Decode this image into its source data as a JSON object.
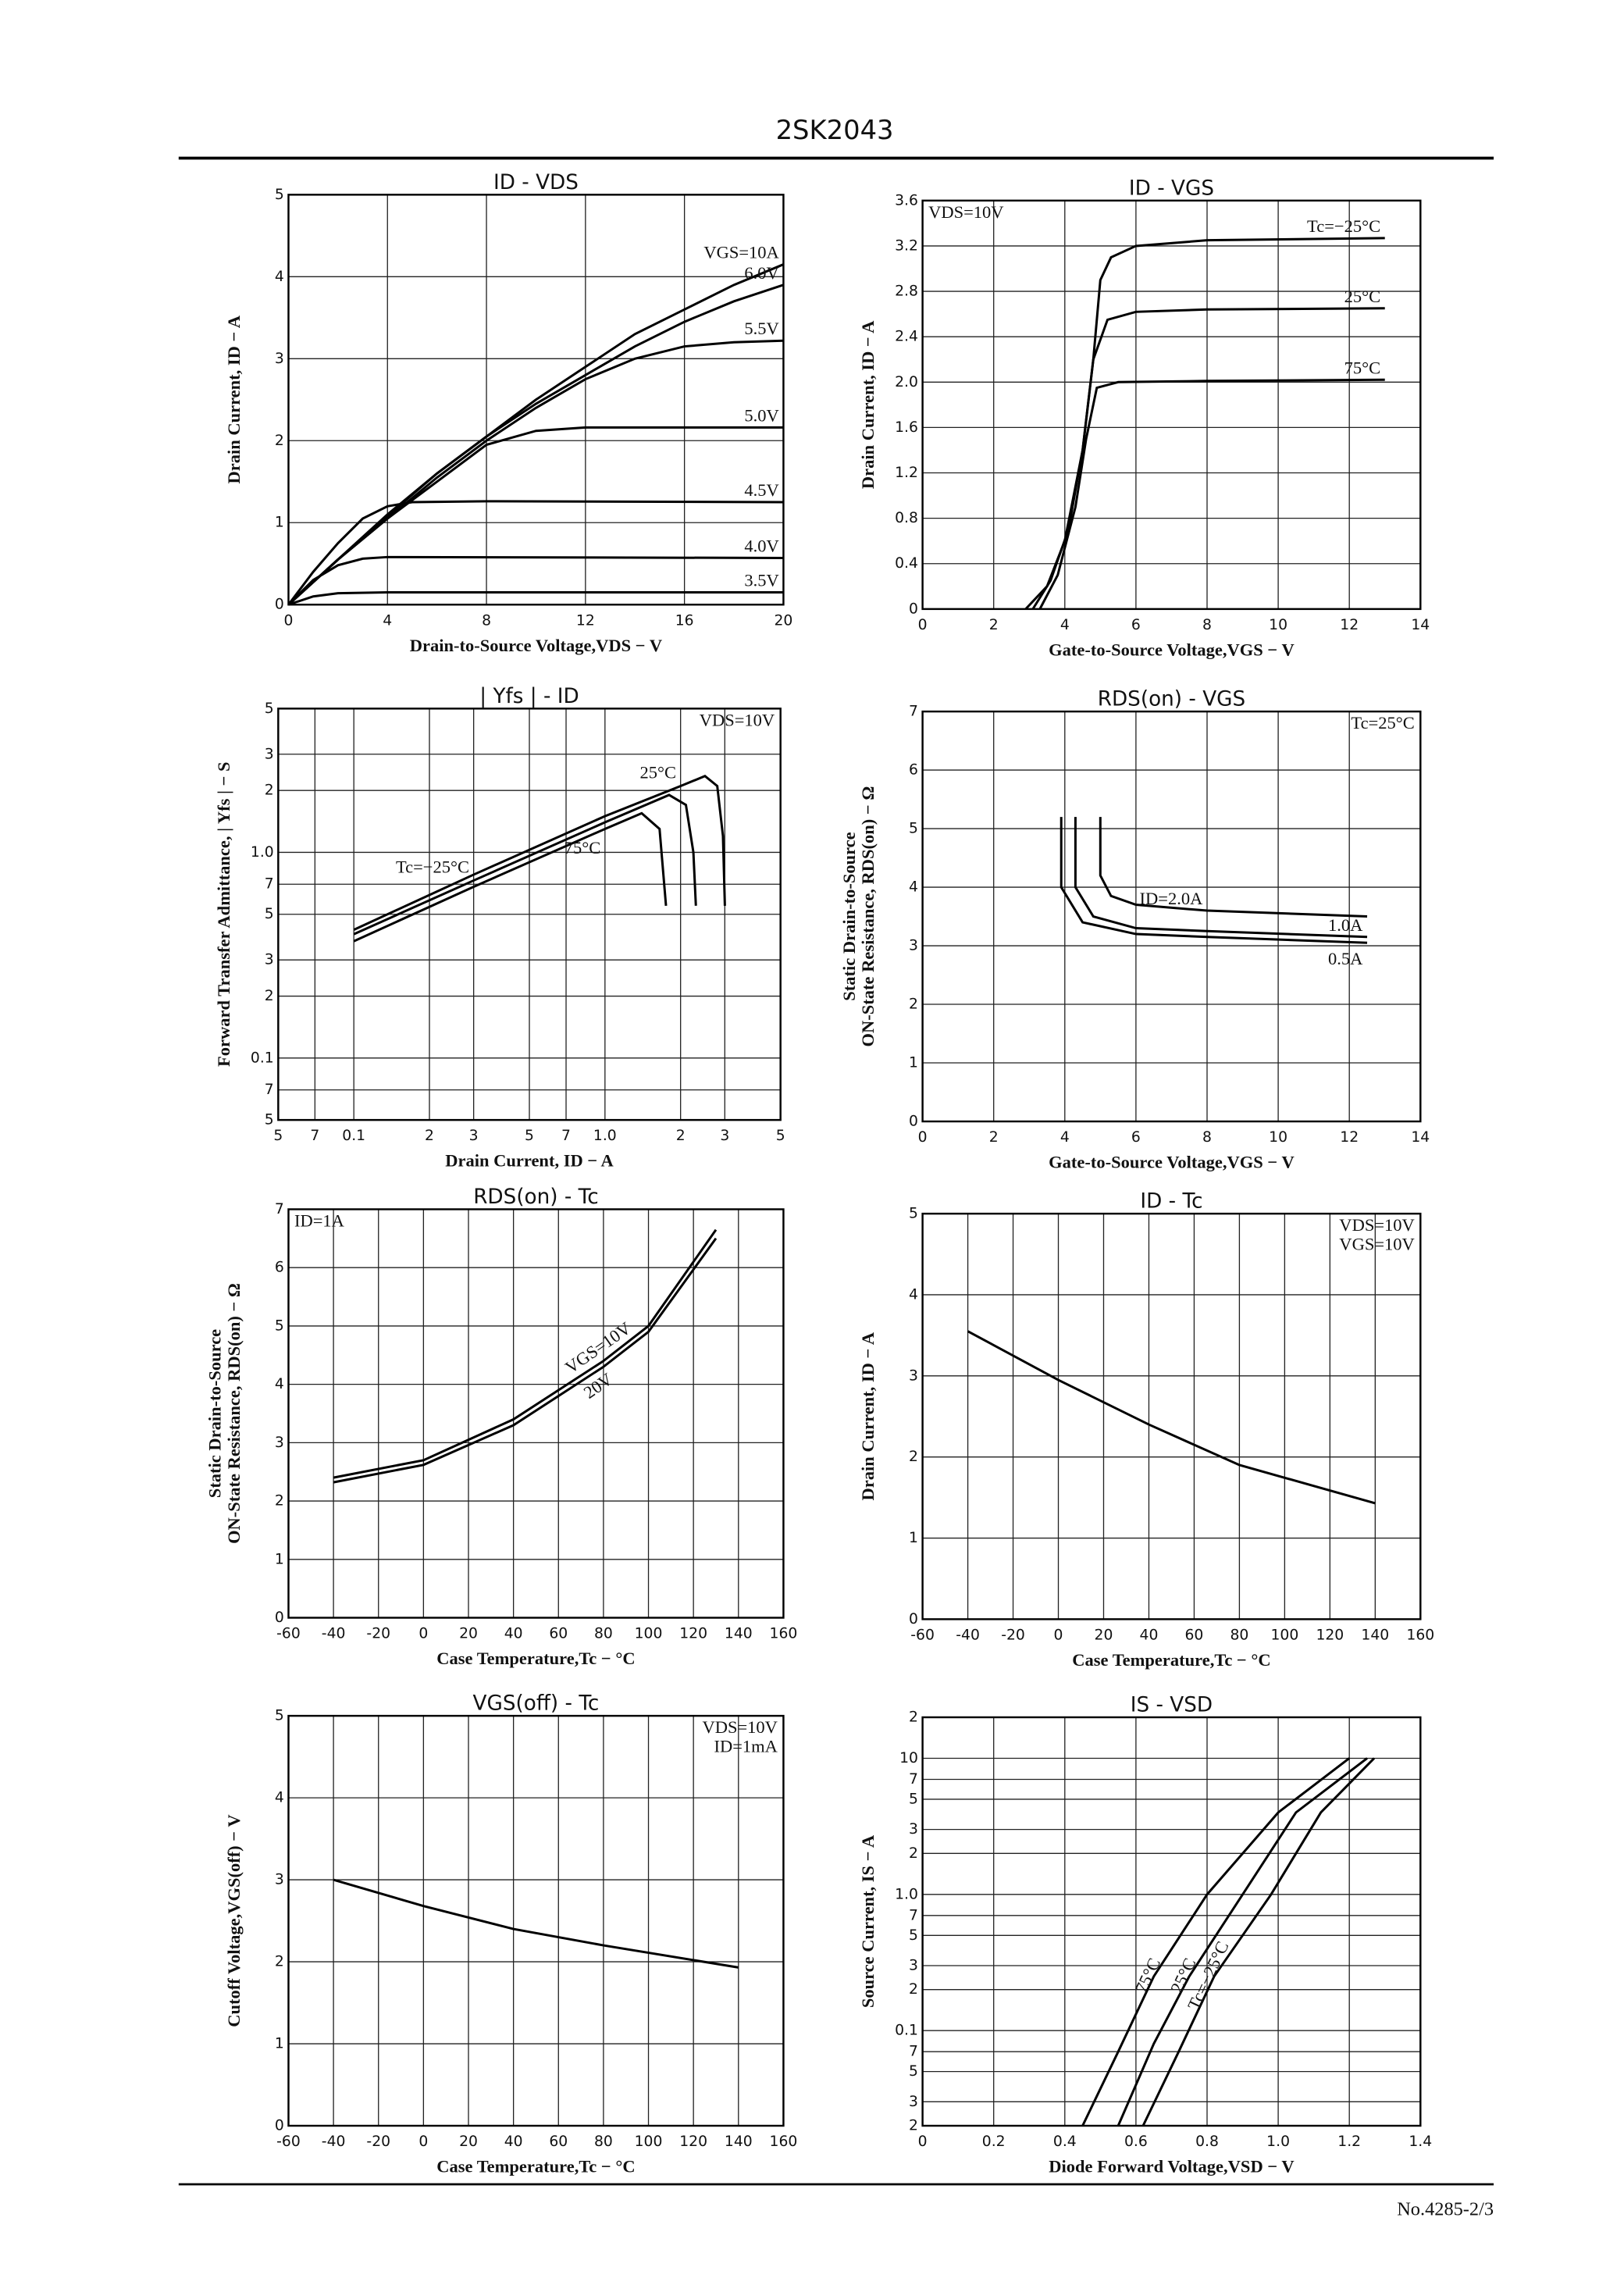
{
  "header": {
    "title": "2SK2043"
  },
  "footer": {
    "text": "No.4285-2/3"
  },
  "chart_data": [
    {
      "type": "line",
      "title": "ID - VDS",
      "xlabel": "Drain-to-Source Voltage,VDS − V",
      "ylabel": [
        "Drain Current, ID − A"
      ],
      "xlim": [
        0,
        20
      ],
      "xticks": [
        0,
        4,
        8,
        12,
        16,
        20
      ],
      "ylim": [
        0,
        5
      ],
      "yticks": [
        0,
        1,
        2,
        3,
        4,
        5
      ],
      "grid": true,
      "series": [
        {
          "name": "VGS=10A",
          "x": [
            0,
            2,
            4,
            6,
            8,
            10,
            12,
            14,
            16,
            18,
            20
          ],
          "values": [
            0,
            0.55,
            1.1,
            1.6,
            2.05,
            2.5,
            2.9,
            3.3,
            3.6,
            3.9,
            4.15
          ]
        },
        {
          "name": "6.0V",
          "x": [
            0,
            2,
            4,
            6,
            8,
            10,
            12,
            14,
            16,
            18,
            20
          ],
          "values": [
            0,
            0.55,
            1.08,
            1.6,
            2.05,
            2.45,
            2.8,
            3.15,
            3.45,
            3.7,
            3.9
          ]
        },
        {
          "name": "5.5V",
          "x": [
            0,
            2,
            4,
            6,
            8,
            10,
            12,
            14,
            16,
            18,
            20
          ],
          "values": [
            0,
            0.55,
            1.05,
            1.55,
            2.0,
            2.4,
            2.75,
            3.0,
            3.15,
            3.2,
            3.22
          ]
        },
        {
          "name": "5.0V",
          "x": [
            0,
            2,
            4,
            6,
            8,
            10,
            12,
            16,
            20
          ],
          "values": [
            0,
            0.55,
            1.05,
            1.5,
            1.95,
            2.12,
            2.16,
            2.16,
            2.16
          ]
        },
        {
          "name": "4.5V",
          "x": [
            0,
            1,
            2,
            3,
            4,
            5,
            8,
            20
          ],
          "values": [
            0,
            0.4,
            0.75,
            1.05,
            1.2,
            1.25,
            1.26,
            1.25
          ]
        },
        {
          "name": "4.0V",
          "x": [
            0,
            1,
            2,
            3,
            4,
            20
          ],
          "values": [
            0,
            0.3,
            0.48,
            0.56,
            0.58,
            0.57
          ]
        },
        {
          "name": "3.5V",
          "x": [
            0,
            1,
            2,
            4,
            20
          ],
          "values": [
            0,
            0.1,
            0.14,
            0.15,
            0.15
          ]
        }
      ]
    },
    {
      "type": "line",
      "title": "ID - VGS",
      "xlabel": "Gate-to-Source Voltage,VGS − V",
      "ylabel": [
        "Drain Current, ID − A"
      ],
      "xlim": [
        0,
        14
      ],
      "xticks": [
        0,
        2,
        4,
        6,
        8,
        10,
        12,
        14
      ],
      "ylim": [
        0,
        3.6
      ],
      "yticks": [
        0,
        0.4,
        0.8,
        1.2,
        1.6,
        {
          "value": 2,
          "label": "2.0"
        },
        2.4,
        2.8,
        3.2,
        3.6
      ],
      "grid": true,
      "annotations": [
        "VDS=10V"
      ],
      "annotation_position": "upper left",
      "series": [
        {
          "name": "Tc=−25°C",
          "x": [
            2.9,
            3.5,
            4,
            4.5,
            4.8,
            5,
            5.3,
            6,
            8,
            13
          ],
          "values": [
            0,
            0.2,
            0.6,
            1.4,
            2.2,
            2.9,
            3.1,
            3.2,
            3.25,
            3.27
          ]
        },
        {
          "name": "25°C",
          "x": [
            3.1,
            3.6,
            4.1,
            4.5,
            4.8,
            5.2,
            6,
            8,
            13
          ],
          "values": [
            0,
            0.25,
            0.7,
            1.4,
            2.2,
            2.55,
            2.62,
            2.64,
            2.65
          ]
        },
        {
          "name": "75°C",
          "x": [
            3.3,
            3.8,
            4.3,
            4.6,
            4.9,
            5.5,
            8,
            13
          ],
          "values": [
            0,
            0.3,
            0.9,
            1.5,
            1.95,
            2.0,
            2.01,
            2.02
          ]
        }
      ]
    },
    {
      "type": "line",
      "title": "| Yfs |  -  ID",
      "xlabel": "Drain Current, ID − A",
      "ylabel": [
        "Forward Transfer Admittance, | Yfs | − S"
      ],
      "xscale": "log",
      "yscale": "log",
      "xlim": [
        0.05,
        5
      ],
      "ylim": [
        0.05,
        5
      ],
      "xticks": [
        {
          "value": 0.05,
          "label": "5"
        },
        {
          "value": 0.07,
          "label": "7"
        },
        0.1,
        {
          "value": 0.2,
          "label": "2"
        },
        {
          "value": 0.3,
          "label": "3"
        },
        {
          "value": 0.5,
          "label": "5"
        },
        {
          "value": 0.7,
          "label": "7"
        },
        {
          "value": 1,
          "label": "1.0"
        },
        2,
        3,
        5
      ],
      "yticks": [
        {
          "value": 0.05,
          "label": "5"
        },
        {
          "value": 0.07,
          "label": "7"
        },
        0.1,
        {
          "value": 0.2,
          "label": "2"
        },
        {
          "value": 0.3,
          "label": "3"
        },
        {
          "value": 0.5,
          "label": "5"
        },
        {
          "value": 0.7,
          "label": "7"
        },
        {
          "value": 1,
          "label": "1.0"
        },
        2,
        3,
        5
      ],
      "grid": true,
      "annotations": [
        "VDS=10V"
      ],
      "annotation_position": "upper right",
      "series": [
        {
          "name": "25°C",
          "x": [
            0.1,
            0.3,
            1,
            2,
            2.5,
            2.8,
            2.95,
            3
          ],
          "values": [
            0.42,
            0.78,
            1.5,
            2.1,
            2.35,
            2.1,
            1.2,
            0.55
          ]
        },
        {
          "name": "Tc=−25°C",
          "x": [
            0.1,
            0.3,
            1,
            1.8,
            2.1,
            2.25,
            2.3
          ],
          "values": [
            0.4,
            0.73,
            1.4,
            1.9,
            1.7,
            1.0,
            0.55
          ]
        },
        {
          "name": "75°C",
          "x": [
            0.1,
            0.3,
            1,
            1.4,
            1.65,
            1.75
          ],
          "values": [
            0.37,
            0.68,
            1.3,
            1.55,
            1.3,
            0.55
          ]
        }
      ]
    },
    {
      "type": "line",
      "title": "RDS(on)  -  VGS",
      "xlabel": "Gate-to-Source Voltage,VGS − V",
      "ylabel": [
        "Static Drain-to-Source",
        "ON-State Resistance, RDS(on) − Ω"
      ],
      "xlim": [
        0,
        14
      ],
      "xticks": [
        0,
        2,
        4,
        6,
        8,
        10,
        12,
        14
      ],
      "ylim": [
        0,
        7
      ],
      "yticks": [
        0,
        1,
        2,
        3,
        4,
        5,
        6,
        7
      ],
      "grid": true,
      "annotations": [
        "Tc=25°C"
      ],
      "annotation_position": "upper right",
      "series": [
        {
          "name": "ID=2.0A",
          "x": [
            5,
            5,
            5.3,
            6,
            8,
            12.5
          ],
          "values": [
            5.2,
            4.2,
            3.85,
            3.7,
            3.6,
            3.5
          ]
        },
        {
          "name": "1.0A",
          "x": [
            4.3,
            4.3,
            4.8,
            6,
            8,
            12.5
          ],
          "values": [
            5.2,
            4.0,
            3.5,
            3.3,
            3.25,
            3.15
          ]
        },
        {
          "name": "0.5A",
          "x": [
            3.9,
            3.9,
            4.5,
            6,
            8,
            12.5
          ],
          "values": [
            5.2,
            4.0,
            3.4,
            3.2,
            3.15,
            3.05
          ]
        }
      ]
    },
    {
      "type": "line",
      "title": "RDS(on)  -  Tc",
      "xlabel": "Case Temperature,Tc − °C",
      "ylabel": [
        "Static Drain-to-Source",
        "ON-State Resistance, RDS(on) − Ω"
      ],
      "xlim": [
        -60,
        160
      ],
      "xticks": [
        -60,
        -40,
        -20,
        0,
        20,
        40,
        60,
        80,
        100,
        120,
        140,
        160
      ],
      "ylim": [
        0,
        7
      ],
      "yticks": [
        0,
        1,
        2,
        3,
        4,
        5,
        6,
        7
      ],
      "grid": true,
      "annotations": [
        "ID=1A"
      ],
      "annotation_position": "upper left",
      "series": [
        {
          "name": "VGS=10V",
          "x": [
            -40,
            0,
            40,
            80,
            100,
            130
          ],
          "values": [
            2.4,
            2.7,
            3.4,
            4.4,
            5.0,
            6.65
          ]
        },
        {
          "name": "20V",
          "x": [
            -40,
            0,
            40,
            80,
            100,
            130
          ],
          "values": [
            2.32,
            2.62,
            3.3,
            4.3,
            4.9,
            6.5
          ]
        }
      ]
    },
    {
      "type": "line",
      "title": "ID  -  Tc",
      "xlabel": "Case Temperature,Tc − °C",
      "ylabel": [
        "Drain Current, ID − A"
      ],
      "xlim": [
        -60,
        160
      ],
      "xticks": [
        -60,
        -40,
        -20,
        0,
        20,
        40,
        60,
        80,
        100,
        120,
        140,
        160
      ],
      "ylim": [
        0,
        5
      ],
      "yticks": [
        0,
        1,
        2,
        3,
        4,
        5
      ],
      "grid": true,
      "annotations": [
        "VDS=10V",
        "VGS=10V"
      ],
      "annotation_position": "upper right",
      "series": [
        {
          "x": [
            -40,
            0,
            40,
            80,
            140
          ],
          "values": [
            3.55,
            2.95,
            2.4,
            1.9,
            1.43
          ]
        }
      ]
    },
    {
      "type": "line",
      "title": "VGS(off)  -  Tc",
      "xlabel": "Case Temperature,Tc − °C",
      "ylabel": [
        "Cutoff Voltage,VGS(off) − V"
      ],
      "xlim": [
        -60,
        160
      ],
      "xticks": [
        -60,
        -40,
        -20,
        0,
        20,
        40,
        60,
        80,
        100,
        120,
        140,
        160
      ],
      "ylim": [
        0,
        5
      ],
      "yticks": [
        0,
        1,
        2,
        3,
        4,
        5
      ],
      "grid": true,
      "annotations": [
        "VDS=10V",
        "ID=1mA"
      ],
      "annotation_position": "upper right",
      "series": [
        {
          "x": [
            -40,
            0,
            40,
            80,
            140
          ],
          "values": [
            3.0,
            2.68,
            2.4,
            2.2,
            1.93
          ]
        }
      ]
    },
    {
      "type": "line",
      "title": "IS  -  VSD",
      "xlabel": "Diode Forward Voltage,VSD − V",
      "ylabel": [
        "Source Current, IS − A"
      ],
      "yscale": "log",
      "xlim": [
        0,
        1.4
      ],
      "xticks": [
        0,
        0.2,
        0.4,
        0.6,
        0.8,
        {
          "value": 1,
          "label": "1.0"
        },
        1.2,
        1.4
      ],
      "ylim": [
        0.02,
        20
      ],
      "yticks": [
        {
          "value": 0.02,
          "label": "2"
        },
        {
          "value": 0.03,
          "label": "3"
        },
        {
          "value": 0.05,
          "label": "5"
        },
        {
          "value": 0.07,
          "label": "7"
        },
        0.1,
        {
          "value": 0.2,
          "label": "2"
        },
        {
          "value": 0.3,
          "label": "3"
        },
        {
          "value": 0.5,
          "label": "5"
        },
        {
          "value": 0.7,
          "label": "7"
        },
        {
          "value": 1,
          "label": "1.0"
        },
        2,
        3,
        5,
        7,
        10,
        {
          "value": 20,
          "label": "2"
        }
      ],
      "grid": true,
      "series": [
        {
          "name": "75°C",
          "x": [
            0.45,
            0.55,
            0.65,
            0.8,
            1.0,
            1.2
          ],
          "values": [
            0.02,
            0.07,
            0.25,
            1.0,
            4,
            10
          ]
        },
        {
          "name": "25°C",
          "x": [
            0.55,
            0.65,
            0.75,
            0.9,
            1.05,
            1.25
          ],
          "values": [
            0.02,
            0.08,
            0.25,
            1.0,
            4,
            10
          ]
        },
        {
          "name": "Tc=−25°C",
          "x": [
            0.62,
            0.72,
            0.82,
            0.98,
            1.12,
            1.27
          ],
          "values": [
            0.02,
            0.07,
            0.25,
            1.0,
            4,
            10
          ]
        }
      ]
    }
  ]
}
